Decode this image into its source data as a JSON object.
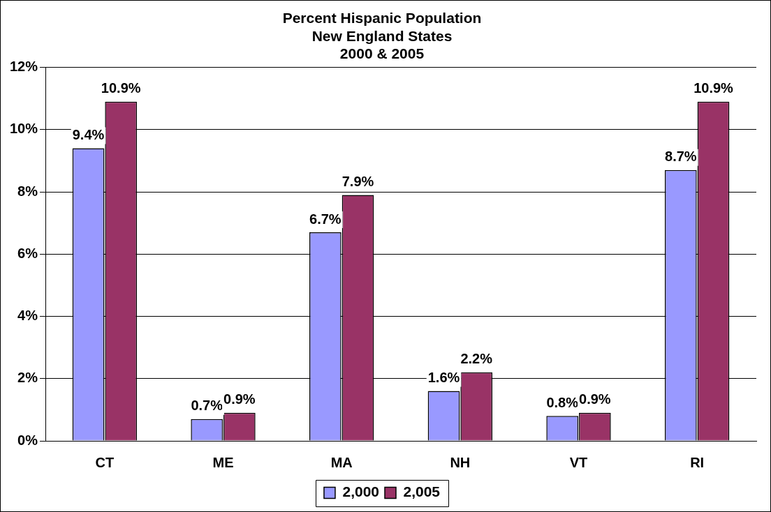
{
  "chart_data": {
    "type": "bar",
    "title": [
      "Percent Hispanic Population",
      "New England States",
      "2000 & 2005"
    ],
    "categories": [
      "CT",
      "ME",
      "MA",
      "NH",
      "VT",
      "RI"
    ],
    "series": [
      {
        "name": "2,000",
        "color": "#9999ff",
        "values": [
          9.4,
          0.7,
          6.7,
          1.6,
          0.8,
          8.7
        ],
        "value_labels": [
          "9.4%",
          "0.7%",
          "6.7%",
          "1.6%",
          "0.8%",
          "8.7%"
        ]
      },
      {
        "name": "2,005",
        "color": "#993366",
        "values": [
          10.9,
          0.9,
          7.9,
          2.2,
          0.9,
          10.9
        ],
        "value_labels": [
          "10.9%",
          "0.9%",
          "7.9%",
          "2.2%",
          "0.9%",
          "10.9%"
        ]
      }
    ],
    "ylim": [
      0,
      12
    ],
    "yticks": [
      {
        "value": 0,
        "label": "0%"
      },
      {
        "value": 2,
        "label": "2%"
      },
      {
        "value": 4,
        "label": "4%"
      },
      {
        "value": 6,
        "label": "6%"
      },
      {
        "value": 8,
        "label": "8%"
      },
      {
        "value": 10,
        "label": "10%"
      },
      {
        "value": 12,
        "label": "12%"
      }
    ],
    "grid": "y",
    "legend": "bottom"
  }
}
